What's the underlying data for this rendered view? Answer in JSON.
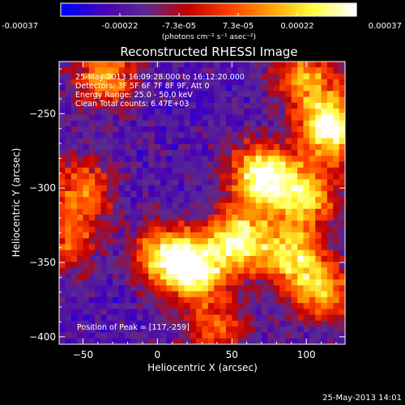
{
  "chart_data": {
    "type": "heatmap",
    "title": "Reconstructed RHESSI Image",
    "xlabel": "Heliocentric X (arcsec)",
    "ylabel": "Heliocentric Y (arcsec)",
    "xlim": [
      -66,
      126
    ],
    "ylim": [
      -405,
      -215
    ],
    "xticks": [
      -50,
      0,
      50,
      100
    ],
    "yticks": [
      -250,
      -300,
      -350,
      -400
    ],
    "colorbar": {
      "range": [
        -0.00037,
        0.00037
      ],
      "tick_labels": [
        "-0.00037",
        "-0.00022",
        "-7.3e-05",
        "7.3e-05",
        "0.00022",
        "0.00037"
      ],
      "unit_label": "(photons cm⁻² s⁻¹ asec⁻²)",
      "colormap": [
        "#0000ff",
        "#4a00b4",
        "#5a2a90",
        "#c00000",
        "#ff4000",
        "#ffa000",
        "#ffff40",
        "#ffffff"
      ]
    },
    "info": [
      "25-May-2013 16:09:28.000 to 16:12:20.000",
      "Detectors: 3F 5F 6F 7F 8F 9F, Att 0",
      "Energy Range: 25.0 - 50.0 keV",
      "Clean     Total counts: 6.47E+03"
    ],
    "peak_label": "Position of Peak = [117,-259]",
    "peak": [
      117,
      -259
    ],
    "emission_regions": [
      {
        "x": 117,
        "y": -259,
        "intensity": 1.0
      },
      {
        "x": 70,
        "y": -292,
        "intensity": 0.95
      },
      {
        "x": 100,
        "y": -305,
        "intensity": 0.7
      },
      {
        "x": 55,
        "y": -335,
        "intensity": 0.8
      },
      {
        "x": 25,
        "y": -355,
        "intensity": 0.85
      },
      {
        "x": 5,
        "y": -345,
        "intensity": 0.65
      },
      {
        "x": 90,
        "y": -345,
        "intensity": 0.7
      },
      {
        "x": 110,
        "y": -370,
        "intensity": 0.6
      },
      {
        "x": -35,
        "y": -225,
        "intensity": 0.6
      },
      {
        "x": -50,
        "y": -300,
        "intensity": 0.5
      },
      {
        "x": -60,
        "y": -335,
        "intensity": 0.45
      },
      {
        "x": 40,
        "y": -395,
        "intensity": 0.45
      },
      {
        "x": 100,
        "y": -225,
        "intensity": 0.55
      }
    ]
  },
  "footer_timestamp": "25-May-2013 14:01"
}
